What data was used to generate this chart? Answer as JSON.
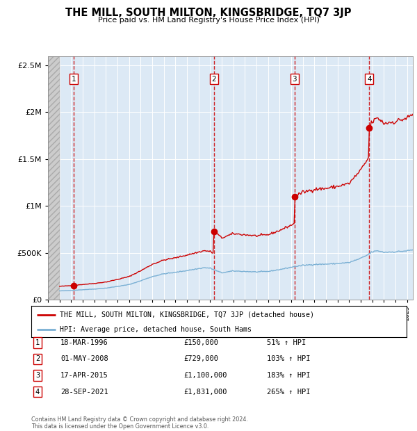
{
  "title": "THE MILL, SOUTH MILTON, KINGSBRIDGE, TQ7 3JP",
  "subtitle": "Price paid vs. HM Land Registry's House Price Index (HPI)",
  "footer1": "Contains HM Land Registry data © Crown copyright and database right 2024.",
  "footer2": "This data is licensed under the Open Government Licence v3.0.",
  "legend_label_red": "THE MILL, SOUTH MILTON, KINGSBRIDGE, TQ7 3JP (detached house)",
  "legend_label_blue": "HPI: Average price, detached house, South Hams",
  "sales": [
    {
      "num": 1,
      "date": "18-MAR-1996",
      "year": 1996.21,
      "price": 150000,
      "pct": "51%"
    },
    {
      "num": 2,
      "date": "01-MAY-2008",
      "year": 2008.33,
      "price": 729000,
      "pct": "103%"
    },
    {
      "num": 3,
      "date": "17-APR-2015",
      "year": 2015.29,
      "price": 1100000,
      "pct": "183%"
    },
    {
      "num": 4,
      "date": "28-SEP-2021",
      "year": 2021.74,
      "price": 1831000,
      "pct": "265%"
    }
  ],
  "xlim": [
    1994,
    2025.5
  ],
  "ylim": [
    0,
    2600000
  ],
  "hatch_end": 1995.0,
  "bg_color": "#dce9f5",
  "red_color": "#cc0000",
  "blue_color": "#7ab0d4",
  "grid_color": "#ffffff"
}
